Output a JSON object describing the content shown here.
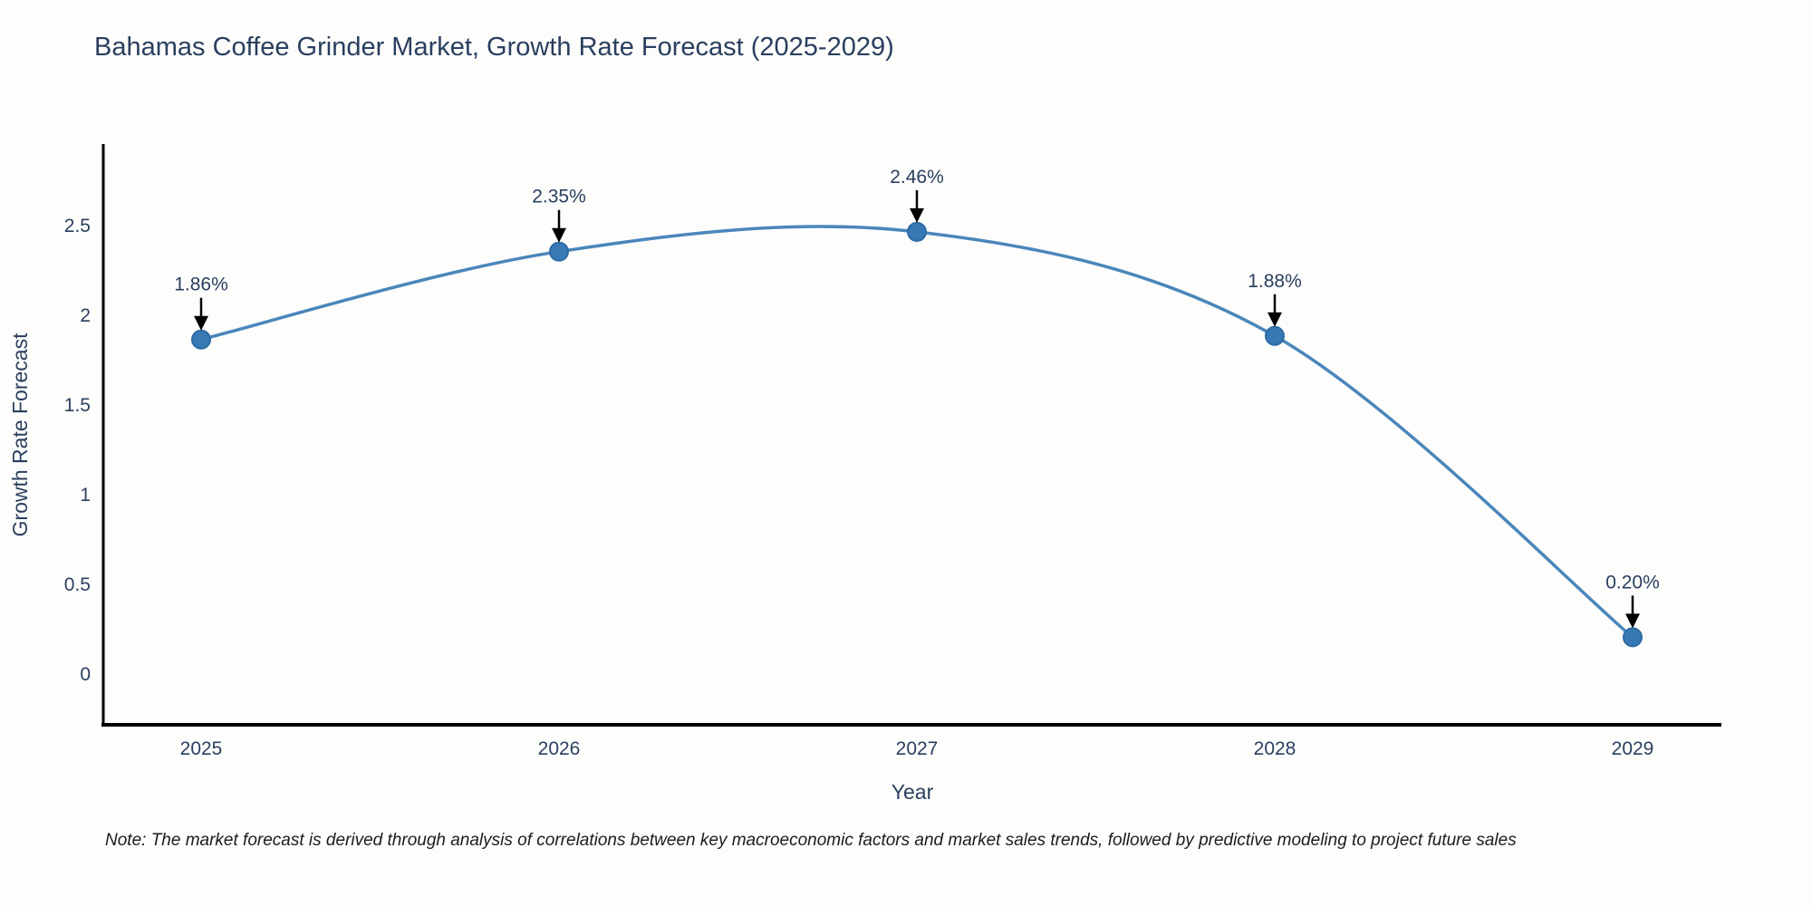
{
  "title": "Bahamas Coffee Grinder Market, Growth Rate Forecast (2025-2029)",
  "note": "Note: The market forecast is derived through analysis of correlations between key macroeconomic factors and market sales trends, followed by predictive modeling to project future sales",
  "chart_data": {
    "type": "line",
    "title": "Bahamas Coffee Grinder Market, Growth Rate Forecast (2025-2029)",
    "categories": [
      "2025",
      "2026",
      "2027",
      "2028",
      "2029"
    ],
    "series": [
      {
        "name": "Growth Rate Forecast",
        "values": [
          1.86,
          2.35,
          2.46,
          1.88,
          0.2
        ],
        "point_labels": [
          "1.86%",
          "2.35%",
          "2.46%",
          "1.88%",
          "0.20%"
        ]
      }
    ],
    "xlabel": "Year",
    "ylabel": "Growth Rate Forecast",
    "yticks": [
      0,
      0.5,
      1,
      1.5,
      2,
      2.5
    ],
    "ylim": [
      -0.29,
      2.95
    ],
    "line_shape": "spline",
    "marker_shape": "circle",
    "annotation_arrows": true,
    "grid": false,
    "legend_position": "none",
    "colors": {
      "line": "#4a86ba",
      "marker_fill": "#3779b5",
      "marker_edge": "#2e6ba4",
      "label_text": "#2a3f5f",
      "axis_line": "#000000",
      "arrow": "#000000",
      "note_text": "#1c1c1c"
    }
  }
}
